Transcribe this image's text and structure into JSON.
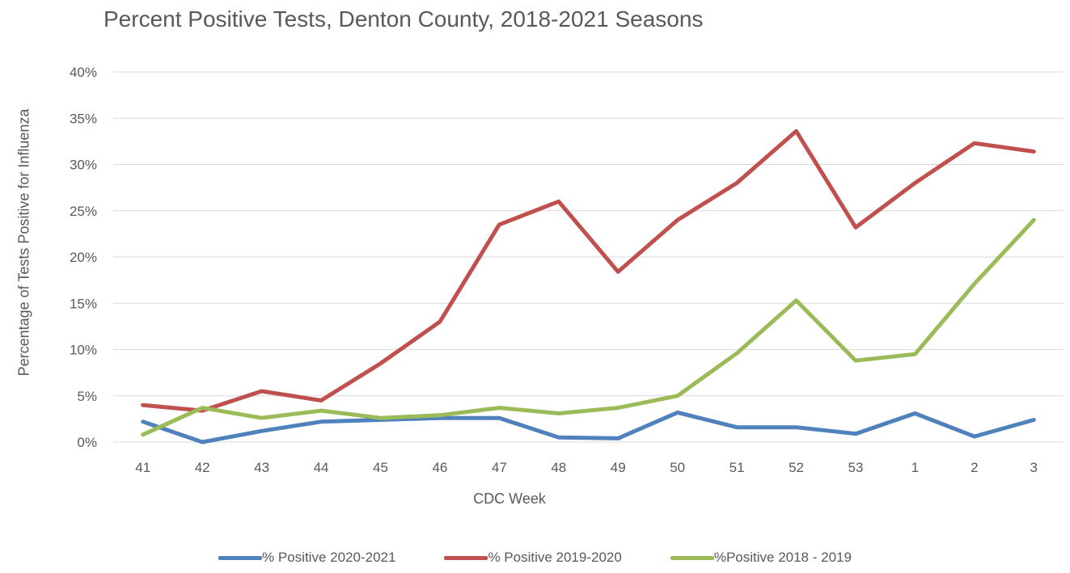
{
  "chart_data": {
    "type": "line",
    "title": "Percent Positive Tests, Denton County, 2018-2021 Seasons",
    "xlabel": "CDC Week",
    "ylabel": "Percentage of Tests Positive for Influenza",
    "categories": [
      "41",
      "42",
      "43",
      "44",
      "45",
      "46",
      "47",
      "48",
      "49",
      "50",
      "51",
      "52",
      "53",
      "1",
      "2",
      "3"
    ],
    "y_ticks": [
      "0%",
      "5%",
      "10%",
      "15%",
      "20%",
      "25%",
      "30%",
      "35%",
      "40%"
    ],
    "ylim": [
      0,
      40
    ],
    "grid": "horizontal",
    "legend_position": "bottom",
    "series": [
      {
        "name": "% Positive 2020-2021",
        "color": "#4f81bd",
        "values": [
          2.2,
          0.0,
          1.2,
          2.2,
          2.4,
          2.6,
          2.6,
          0.5,
          0.4,
          3.2,
          1.6,
          1.6,
          0.9,
          3.1,
          0.6,
          2.4
        ]
      },
      {
        "name": "% Positive 2019-2020",
        "color": "#c0504d",
        "values": [
          4.0,
          3.4,
          5.5,
          4.5,
          8.5,
          13.0,
          23.5,
          26.0,
          18.4,
          24.0,
          28.0,
          33.6,
          23.2,
          28.0,
          32.3,
          31.4
        ]
      },
      {
        "name": "%Positive 2018 - 2019",
        "color": "#9bbb59",
        "values": [
          0.8,
          3.7,
          2.6,
          3.4,
          2.6,
          2.9,
          3.7,
          3.1,
          3.7,
          5.0,
          9.6,
          15.3,
          8.8,
          9.5,
          17.1,
          24.0
        ]
      }
    ]
  }
}
